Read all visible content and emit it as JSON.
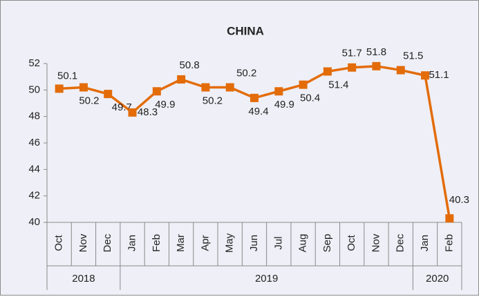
{
  "chart_data": {
    "type": "line",
    "title": "CHINA",
    "categories": [
      "Oct",
      "Nov",
      "Dec",
      "Jan",
      "Feb",
      "Mar",
      "Apr",
      "May",
      "Jun",
      "Jul",
      "Aug",
      "Sep",
      "Oct",
      "Nov",
      "Dec",
      "Jan",
      "Feb"
    ],
    "year_groups": [
      {
        "label": "2018",
        "count": 3
      },
      {
        "label": "2019",
        "count": 12
      },
      {
        "label": "2020",
        "count": 2
      }
    ],
    "series": [
      {
        "name": "CHINA",
        "color": "#e36c09",
        "values": [
          50.1,
          50.2,
          49.7,
          48.3,
          49.9,
          50.8,
          50.2,
          50.2,
          49.4,
          49.9,
          50.4,
          51.4,
          51.7,
          51.8,
          51.5,
          51.1,
          40.3
        ]
      }
    ],
    "ylim": [
      40,
      52
    ],
    "yticks": [
      40,
      42,
      44,
      46,
      48,
      50,
      52
    ],
    "grid": false
  }
}
